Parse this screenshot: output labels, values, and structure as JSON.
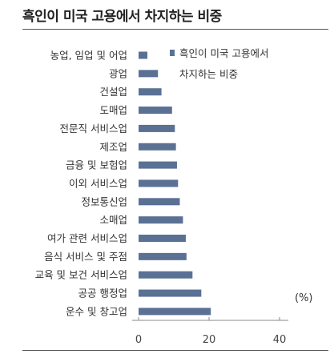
{
  "title": "흑인이 미국 고용에서 차지하는 비중",
  "chart_data": {
    "type": "bar",
    "orientation": "horizontal",
    "categories": [
      "농업, 임업 및 어업",
      "광업",
      "건설업",
      "도매업",
      "전문직 서비스업",
      "제조업",
      "금융 및 보험업",
      "이외 서비스업",
      "정보통신업",
      "소매업",
      "여가 관련 서비스업",
      "음식 서비스 및 주점",
      "교육 및 보건 서비스업",
      "공공 행정업",
      "운수 및 창고업"
    ],
    "series": [
      {
        "name": "흑인이 미국 고용에서 차지하는 비중",
        "values": [
          2.5,
          5.5,
          6.5,
          9.5,
          10.3,
          10.6,
          10.9,
          11.2,
          11.7,
          12.6,
          13.4,
          13.6,
          15.3,
          17.8,
          20.5
        ]
      }
    ],
    "legend_lines": [
      "흑인이 미국 고용에서",
      "차지하는 비중"
    ],
    "unit": "(%)",
    "xlim": [
      0,
      40
    ],
    "xticks": [
      0,
      20,
      40
    ],
    "grid": false,
    "legend_position": "top-right",
    "bar_color": "#5a7194"
  }
}
